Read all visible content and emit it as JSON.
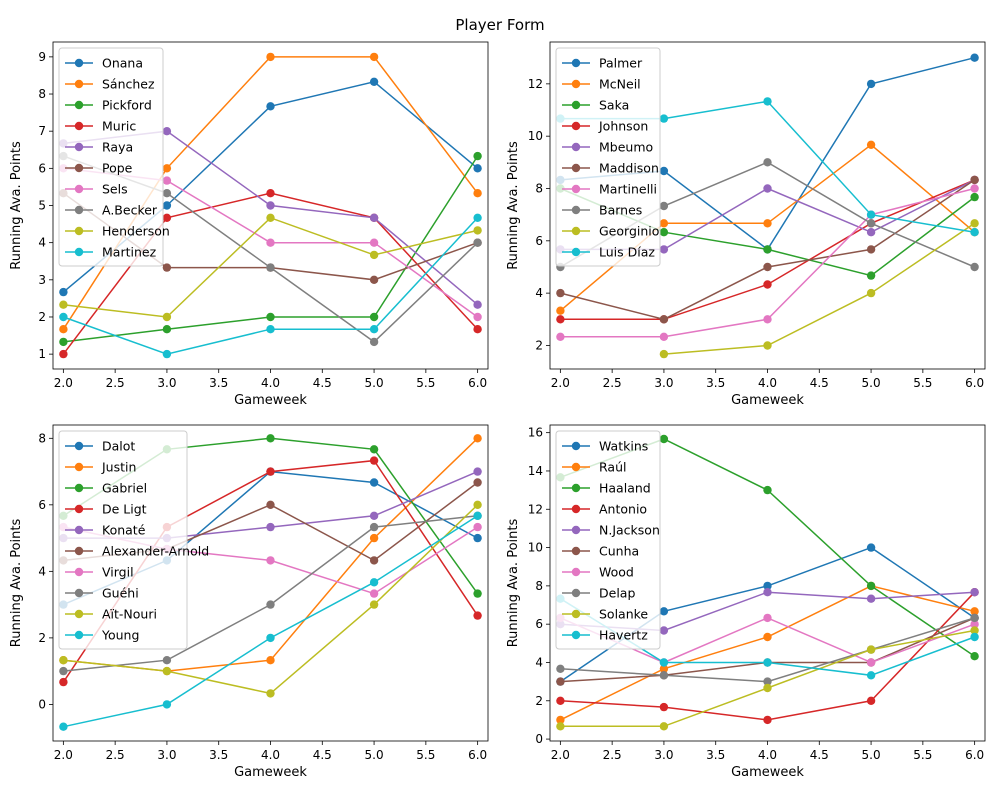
{
  "figure": {
    "title": "Player Form"
  },
  "colors": [
    "#1f77b4",
    "#ff7f0e",
    "#2ca02c",
    "#d62728",
    "#9467bd",
    "#8c564b",
    "#e377c2",
    "#7f7f7f",
    "#bcbd22",
    "#17becf"
  ],
  "chart_data": [
    {
      "type": "line",
      "xlabel": "Gameweek",
      "ylabel": "Running Ava. Points",
      "xlim": [
        1.9,
        6.1
      ],
      "ylim": [
        0.6,
        9.4
      ],
      "xticks": [
        "2.0",
        "2.5",
        "3.0",
        "3.5",
        "4.0",
        "4.5",
        "5.0",
        "5.5",
        "6.0"
      ],
      "yticks": [
        1,
        2,
        3,
        4,
        5,
        6,
        7,
        8,
        9
      ],
      "legend": "top-left",
      "x": [
        2,
        3,
        4,
        5,
        6
      ],
      "series": [
        {
          "name": "Onana",
          "values": [
            2.67,
            5.0,
            7.67,
            8.33,
            6.0
          ]
        },
        {
          "name": "Sánchez",
          "values": [
            1.67,
            6.0,
            9.0,
            9.0,
            5.33
          ]
        },
        {
          "name": "Pickford",
          "values": [
            1.33,
            1.67,
            2.0,
            2.0,
            6.33
          ]
        },
        {
          "name": "Muric",
          "values": [
            1.0,
            4.67,
            5.33,
            4.67,
            1.67
          ]
        },
        {
          "name": "Raya",
          "values": [
            6.67,
            7.0,
            5.0,
            4.67,
            2.33
          ]
        },
        {
          "name": "Pope",
          "values": [
            5.33,
            3.33,
            3.33,
            3.0,
            4.0
          ]
        },
        {
          "name": "Sels",
          "values": [
            6.0,
            5.67,
            4.0,
            4.0,
            2.0
          ]
        },
        {
          "name": "A.Becker",
          "values": [
            6.33,
            5.33,
            3.33,
            1.33,
            4.0
          ]
        },
        {
          "name": "Henderson",
          "values": [
            2.33,
            2.0,
            4.67,
            3.67,
            4.33
          ]
        },
        {
          "name": "Martinez",
          "values": [
            2.0,
            1.0,
            1.67,
            1.67,
            4.67
          ]
        }
      ]
    },
    {
      "type": "line",
      "xlabel": "Gameweek",
      "ylabel": "Running Ava. Points",
      "xlim": [
        1.9,
        6.1
      ],
      "ylim": [
        1.1,
        13.6
      ],
      "xticks": [
        "2.0",
        "2.5",
        "3.0",
        "3.5",
        "4.0",
        "4.5",
        "5.0",
        "5.5",
        "6.0"
      ],
      "yticks": [
        2,
        4,
        6,
        8,
        10,
        12
      ],
      "legend": "top-left",
      "x": [
        2,
        3,
        4,
        5,
        6
      ],
      "series": [
        {
          "name": "Palmer",
          "values": [
            8.33,
            8.67,
            5.67,
            12.0,
            13.0
          ]
        },
        {
          "name": "McNeil",
          "values": [
            3.33,
            6.67,
            6.67,
            9.67,
            6.33
          ]
        },
        {
          "name": "Saka",
          "values": [
            8.0,
            6.33,
            5.67,
            4.67,
            7.67
          ]
        },
        {
          "name": "Johnson",
          "values": [
            3.0,
            3.0,
            4.33,
            6.67,
            8.33
          ]
        },
        {
          "name": "Mbeumo",
          "values": [
            5.67,
            5.67,
            8.0,
            6.33,
            8.33
          ]
        },
        {
          "name": "Maddison",
          "values": [
            4.0,
            3.0,
            5.0,
            5.67,
            8.33
          ]
        },
        {
          "name": "Martinelli",
          "values": [
            2.33,
            2.33,
            3.0,
            7.0,
            8.0
          ]
        },
        {
          "name": "Barnes",
          "values": [
            5.0,
            7.33,
            9.0,
            6.67,
            5.0
          ]
        },
        {
          "name": "Georginio",
          "values": [
            null,
            1.67,
            2.0,
            4.0,
            6.67
          ]
        },
        {
          "name": "Luis Díaz",
          "values": [
            10.67,
            10.67,
            11.33,
            7.0,
            6.33
          ]
        }
      ]
    },
    {
      "type": "line",
      "xlabel": "Gameweek",
      "ylabel": "Running Ava. Points",
      "xlim": [
        1.9,
        6.1
      ],
      "ylim": [
        -1.1,
        8.4
      ],
      "xticks": [
        "2.0",
        "2.5",
        "3.0",
        "3.5",
        "4.0",
        "4.5",
        "5.0",
        "5.5",
        "6.0"
      ],
      "yticks": [
        0,
        2,
        4,
        6,
        8
      ],
      "legend": "top-left",
      "x": [
        2,
        3,
        4,
        5,
        6
      ],
      "series": [
        {
          "name": "Dalot",
          "values": [
            3.0,
            4.33,
            7.0,
            6.67,
            5.0
          ]
        },
        {
          "name": "Justin",
          "values": [
            1.33,
            1.0,
            1.33,
            5.0,
            8.0
          ]
        },
        {
          "name": "Gabriel",
          "values": [
            5.67,
            7.67,
            8.0,
            7.67,
            3.33
          ]
        },
        {
          "name": "De Ligt",
          "values": [
            0.67,
            5.33,
            7.0,
            7.33,
            2.67
          ]
        },
        {
          "name": "Konaté",
          "values": [
            5.0,
            5.0,
            5.33,
            5.67,
            7.0
          ]
        },
        {
          "name": "Alexander-Arnold",
          "values": [
            4.33,
            4.67,
            6.0,
            4.33,
            6.67
          ]
        },
        {
          "name": "Virgil",
          "values": [
            5.33,
            4.67,
            4.33,
            3.33,
            5.33
          ]
        },
        {
          "name": "Guéhi",
          "values": [
            1.0,
            1.33,
            3.0,
            5.33,
            5.67
          ]
        },
        {
          "name": "Aït-Nouri",
          "values": [
            1.33,
            1.0,
            0.33,
            3.0,
            6.0
          ]
        },
        {
          "name": "Young",
          "values": [
            -0.67,
            0.0,
            2.0,
            3.67,
            5.67
          ]
        }
      ]
    },
    {
      "type": "line",
      "xlabel": "Gameweek",
      "ylabel": "Running Ava. Points",
      "xlim": [
        1.9,
        6.1
      ],
      "ylim": [
        -0.1,
        16.4
      ],
      "xticks": [
        "2.0",
        "2.5",
        "3.0",
        "3.5",
        "4.0",
        "4.5",
        "5.0",
        "5.5",
        "6.0"
      ],
      "yticks": [
        0,
        2,
        4,
        6,
        8,
        10,
        12,
        14,
        16
      ],
      "legend": "top-left",
      "x": [
        2,
        3,
        4,
        5,
        6
      ],
      "series": [
        {
          "name": "Watkins",
          "values": [
            3.0,
            6.67,
            8.0,
            10.0,
            6.33
          ]
        },
        {
          "name": "Raúl",
          "values": [
            1.0,
            3.67,
            5.33,
            8.0,
            6.67
          ]
        },
        {
          "name": "Haaland",
          "values": [
            13.67,
            15.67,
            13.0,
            8.0,
            4.33
          ]
        },
        {
          "name": "Antonio",
          "values": [
            2.0,
            1.67,
            1.0,
            2.0,
            7.67
          ]
        },
        {
          "name": "N.Jackson",
          "values": [
            6.0,
            5.67,
            7.67,
            7.33,
            7.67
          ]
        },
        {
          "name": "Cunha",
          "values": [
            3.0,
            3.33,
            4.0,
            4.0,
            6.33
          ]
        },
        {
          "name": "Wood",
          "values": [
            6.33,
            4.0,
            6.33,
            4.0,
            6.0
          ]
        },
        {
          "name": "Delap",
          "values": [
            3.67,
            3.33,
            3.0,
            4.67,
            6.33
          ]
        },
        {
          "name": "Solanke",
          "values": [
            0.67,
            0.67,
            2.67,
            4.67,
            5.67
          ]
        },
        {
          "name": "Havertz",
          "values": [
            7.33,
            4.0,
            4.0,
            3.33,
            5.33
          ]
        }
      ]
    }
  ]
}
